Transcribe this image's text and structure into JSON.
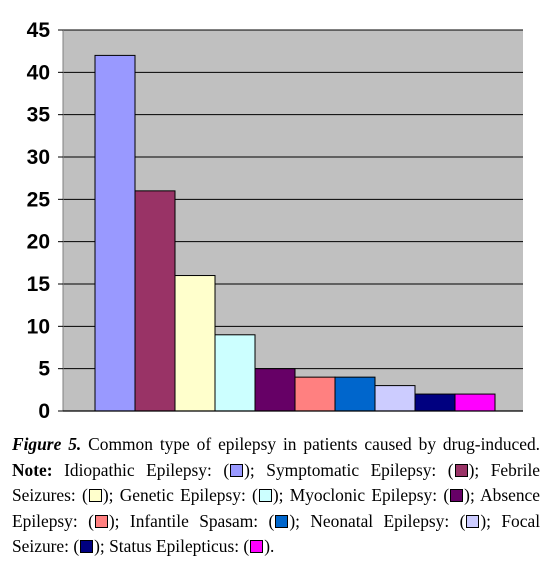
{
  "chart_data": {
    "type": "bar",
    "categories": [
      "Idiopathic Epilepsy",
      "Symptomatic Epilepsy",
      "Febrile Seizures",
      "Genetic Epilepsy",
      "Myoclonic Epilepsy",
      "Absence Epilepsy",
      "Infantile Spasam",
      "Neonatal Epilepsy",
      "Focal Seizure",
      "Status Epilepticus"
    ],
    "values": [
      42,
      26,
      16,
      9,
      5,
      4,
      4,
      3,
      2,
      2
    ],
    "colors": [
      "#9999ff",
      "#993366",
      "#ffffcc",
      "#ccffff",
      "#660066",
      "#ff8080",
      "#0066cc",
      "#ccccff",
      "#000080",
      "#ff00ff"
    ],
    "ylim": [
      0,
      45
    ],
    "yticks": [
      "0",
      "5",
      "10",
      "15",
      "20",
      "25",
      "30",
      "35",
      "40",
      "45"
    ],
    "grid": true,
    "plot_background": "#c0c0c0",
    "legend": "caption"
  },
  "caption": {
    "figure_label": "Figure 5.",
    "text": "Common type of epilepsy in patients caused by drug-induced.",
    "note_label": "Note:",
    "entries": [
      {
        "label": "Idiopathic Epilepsy:"
      },
      {
        "label": "Symptomatic Epilepsy:"
      },
      {
        "label": "Febrile Seizures:"
      },
      {
        "label": "Genetic Epilepsy:"
      },
      {
        "label": "Myoclonic Epilepsy:"
      },
      {
        "label": "Absence Epilepsy:"
      },
      {
        "label": "Infantile Spasam:"
      },
      {
        "label": "Neonatal Epilepsy:"
      },
      {
        "label": "Focal Seizure:"
      },
      {
        "label": "Status Epilepticus:"
      }
    ]
  }
}
